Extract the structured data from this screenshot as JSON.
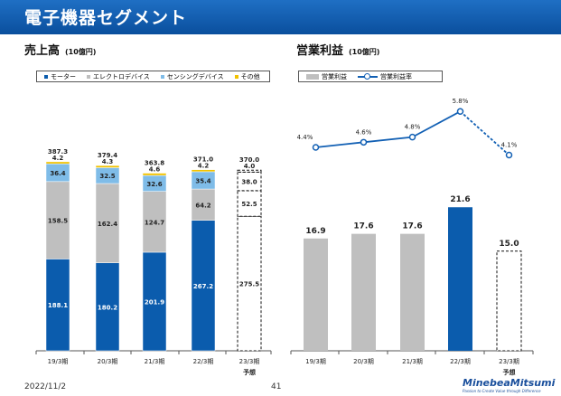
{
  "header": {
    "title": "電子機器セグメント"
  },
  "left_panel": {
    "title": "売上高",
    "unit": "(10億円)"
  },
  "right_panel": {
    "title": "営業利益",
    "unit": "(10億円)"
  },
  "legend_left": [
    {
      "label": "モーター",
      "color": "#0b5cad"
    },
    {
      "label": "エレクトロデバイス",
      "color": "#bfbfbf"
    },
    {
      "label": "センシングデバイス",
      "color": "#7fbce8"
    },
    {
      "label": "その他",
      "color": "#f2c200"
    }
  ],
  "legend_right": [
    {
      "label": "営業利益"
    },
    {
      "label": "営業利益率"
    }
  ],
  "chart_data": [
    {
      "type": "bar",
      "stacked": true,
      "title": "売上高 (10億円)",
      "categories": [
        "19/3期",
        "20/3期",
        "21/3期",
        "22/3期",
        "23/3期"
      ],
      "category_notes": [
        "",
        "",
        "",
        "",
        "予想"
      ],
      "forecast_index": 4,
      "series": [
        {
          "name": "モーター",
          "values": [
            188.1,
            180.2,
            201.9,
            267.2,
            275.5
          ]
        },
        {
          "name": "エレクトロデバイス",
          "values": [
            158.5,
            162.4,
            124.7,
            64.2,
            52.5
          ]
        },
        {
          "name": "センシングデバイス",
          "values": [
            36.4,
            32.5,
            32.6,
            35.4,
            38.0
          ]
        },
        {
          "name": "その他",
          "values": [
            4.2,
            4.3,
            4.6,
            4.2,
            4.0
          ]
        }
      ],
      "totals": [
        387.3,
        379.4,
        363.8,
        371.0,
        370.0
      ],
      "ylim": [
        0,
        420
      ]
    },
    {
      "type": "bar",
      "title": "営業利益 (10億円)",
      "categories": [
        "19/3期",
        "20/3期",
        "21/3期",
        "22/3期",
        "23/3期"
      ],
      "category_notes": [
        "",
        "",
        "",
        "",
        "予想"
      ],
      "forecast_index": 4,
      "highlight_index": 3,
      "values": [
        16.9,
        17.6,
        17.6,
        21.6,
        15.0
      ],
      "value_labels": [
        "16.9",
        "17.6",
        "17.6",
        "21.6",
        "15.0"
      ],
      "ylim": [
        0,
        30
      ],
      "line": {
        "name": "営業利益率",
        "values": [
          4.4,
          4.6,
          4.8,
          5.8,
          4.1
        ],
        "labels": [
          "4.4%",
          "4.6%",
          "4.8%",
          "5.8%",
          "4.1%"
        ],
        "ylim": [
          0,
          6.4
        ],
        "dashed_from_index": 3
      }
    }
  ],
  "footer": {
    "date": "2022/11/2",
    "page": "41"
  },
  "logo": {
    "name": "MinebeaMitsumi",
    "tagline": "Passion to Create Value through Difference"
  }
}
